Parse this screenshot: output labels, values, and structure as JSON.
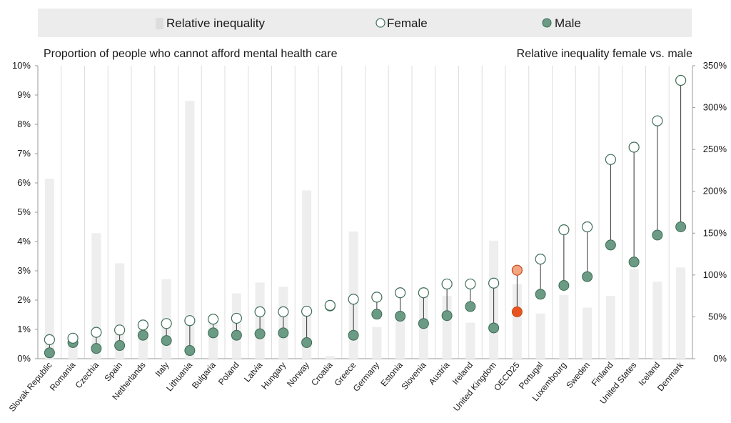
{
  "chart_data": {
    "type": "dot-range with bars",
    "legend": {
      "bar": "Relative inequality",
      "female": "Female",
      "male": "Male"
    },
    "left_axis_title": "Proportion of people who cannot afford mental health care",
    "right_axis_title": "Relative inequality female vs. male",
    "left_ylim": [
      0,
      10
    ],
    "left_ticks": [
      "0%",
      "1%",
      "2%",
      "3%",
      "4%",
      "5%",
      "6%",
      "7%",
      "8%",
      "9%",
      "10%"
    ],
    "right_ylim": [
      0,
      350
    ],
    "right_ticks": [
      "0%",
      "50%",
      "100%",
      "150%",
      "200%",
      "250%",
      "300%",
      "350%"
    ],
    "grid": "vertical",
    "categories": [
      "Slovak Republic",
      "Romania",
      "Czechia",
      "Spain",
      "Netherlands",
      "Italy",
      "Lithuania",
      "Bulgaria",
      "Poland",
      "Latvia",
      "Hungary",
      "Norway",
      "Croatia",
      "Greece",
      "Germany",
      "Estonia",
      "Slovenia",
      "Austria",
      "Ireland",
      "United Kingdom",
      "OECD25",
      "Portugal",
      "Luxembourg",
      "Sweden",
      "Finland",
      "United States",
      "Iceland",
      "Denmark"
    ],
    "highlight": "OECD25",
    "series": [
      {
        "name": "Female",
        "values": [
          0.65,
          0.7,
          0.9,
          0.98,
          1.15,
          1.2,
          1.3,
          1.35,
          1.38,
          1.6,
          1.6,
          1.62,
          1.82,
          2.03,
          2.1,
          2.25,
          2.25,
          2.55,
          2.55,
          2.58,
          3.02,
          3.4,
          4.4,
          4.5,
          6.8,
          7.22,
          8.12,
          9.5
        ]
      },
      {
        "name": "Male",
        "values": [
          0.2,
          0.55,
          0.35,
          0.45,
          0.8,
          0.62,
          0.28,
          0.88,
          0.8,
          0.85,
          0.88,
          0.55,
          1.8,
          0.8,
          1.52,
          1.45,
          1.2,
          1.47,
          1.78,
          1.05,
          1.6,
          2.2,
          2.5,
          2.8,
          3.88,
          3.3,
          4.22,
          4.5
        ]
      },
      {
        "name": "Relative inequality",
        "values": [
          215,
          20,
          150,
          114,
          40,
          95,
          308,
          47,
          78,
          91,
          86,
          201,
          3,
          152,
          38,
          52,
          85,
          75,
          43,
          141,
          89,
          54,
          76,
          61,
          75,
          107,
          92,
          109
        ]
      }
    ],
    "colors": {
      "bar": "#eeeeee",
      "legend_bg": "#ececec",
      "female_fill": "#ffffff",
      "female_stroke": "#3f6e58",
      "male": "#6b9b84",
      "male_stroke": "#3d6b55",
      "oecd_female": "#f4a582",
      "oecd_male": "#e8541f",
      "oecd_stroke": "#c44a1c",
      "grid": "#dedede",
      "connector": "#333333"
    }
  }
}
